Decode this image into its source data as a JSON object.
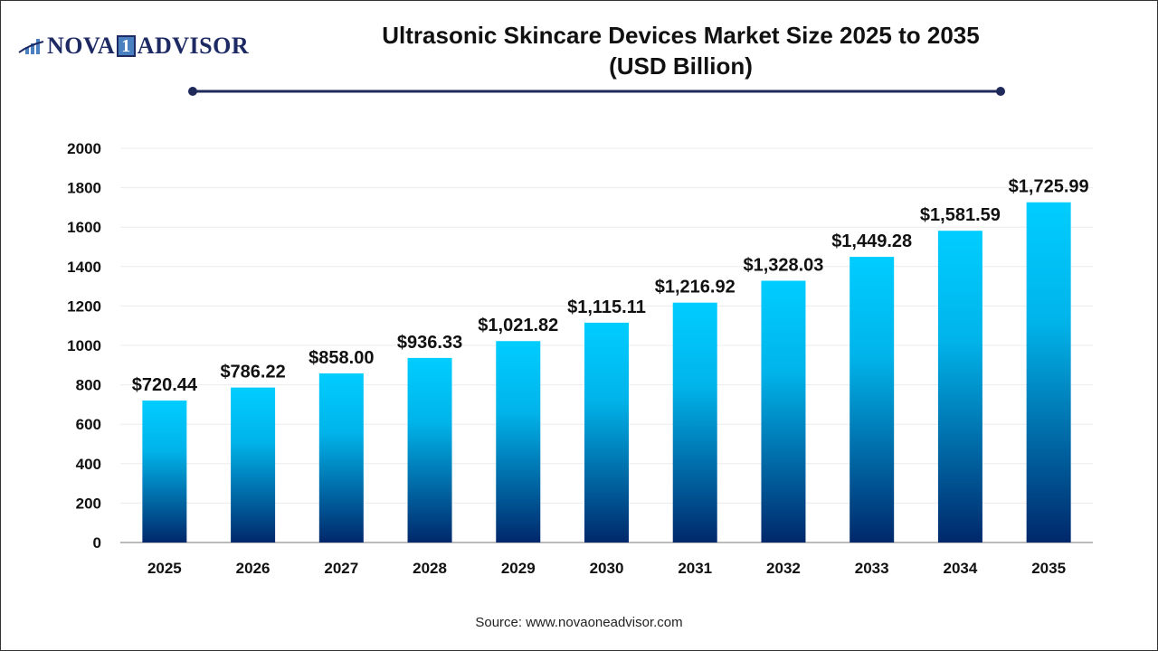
{
  "logo": {
    "text_left": "NOVA",
    "text_one": "1",
    "text_right": "ADVISOR"
  },
  "title_line1": "Ultrasonic Skincare Devices Market Size 2025 to 2035",
  "title_line2": "(USD Billion)",
  "source": "Source: www.novaoneadvisor.com",
  "colors": {
    "bar_top": "#00cdff",
    "bar_bottom": "#00286b",
    "title_rule": "#1f2a5a"
  },
  "chart_data": {
    "type": "bar",
    "title": "Ultrasonic Skincare Devices Market Size 2025 to 2035 (USD Billion)",
    "categories": [
      "2025",
      "2026",
      "2027",
      "2028",
      "2029",
      "2030",
      "2031",
      "2032",
      "2033",
      "2034",
      "2035"
    ],
    "values": [
      720.44,
      786.22,
      858.0,
      936.33,
      1021.82,
      1115.11,
      1216.92,
      1328.03,
      1449.28,
      1581.59,
      1725.99
    ],
    "data_labels": [
      "$720.44",
      "$786.22",
      "$858.00",
      "$936.33",
      "$1,021.82",
      "$1,115.11",
      "$1,216.92",
      "$1,328.03",
      "$1,449.28",
      "$1,581.59",
      "$1,725.99"
    ],
    "yticks": [
      0,
      200,
      400,
      600,
      800,
      1000,
      1200,
      1400,
      1600,
      1800,
      2000
    ],
    "ylim": [
      0,
      2000
    ],
    "xlabel": "",
    "ylabel": "",
    "grid": true,
    "legend": "none"
  }
}
